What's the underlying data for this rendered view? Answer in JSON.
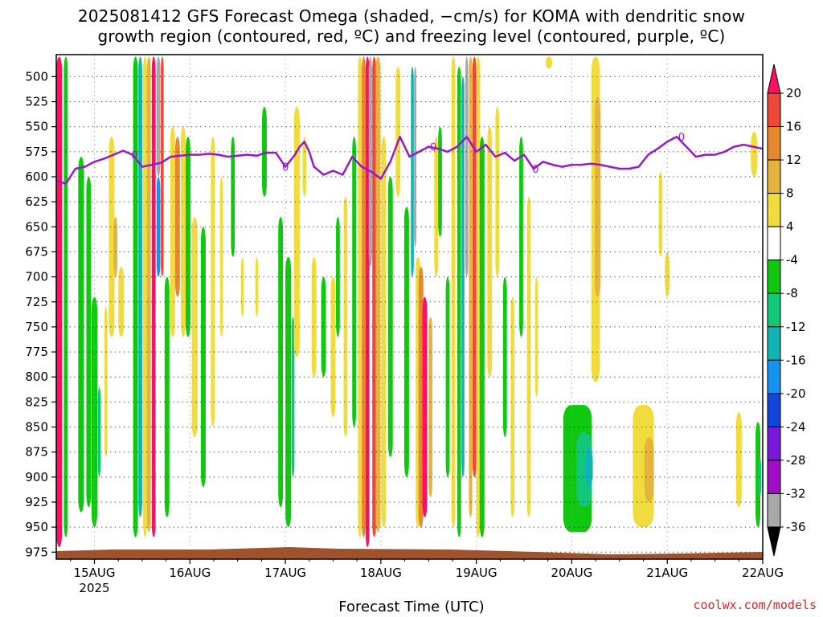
{
  "title_line1": "2025081412 GFS Forecast Omega (shaded, −cm/s) for KOMA with dendritic snow",
  "title_line2": "growth region (contoured, red, ºC) and freezing level (contoured, purple, ºC)",
  "watermark": "coolwx.com/models",
  "chart_data": {
    "type": "heatmap",
    "xlabel": "Forecast Time (UTC)",
    "ylabel": "",
    "x_tick_labels": [
      "15AUG",
      "16AUG",
      "17AUG",
      "18AUG",
      "19AUG",
      "20AUG",
      "21AUG",
      "22AUG"
    ],
    "x_tick_sublabel": "2025",
    "x_range": [
      14.6,
      22.0
    ],
    "y_range": [
      478,
      982
    ],
    "y_inverted": true,
    "y_tick_labels": [
      500,
      525,
      550,
      575,
      600,
      625,
      650,
      675,
      700,
      725,
      750,
      775,
      800,
      825,
      850,
      875,
      900,
      925,
      950,
      975
    ],
    "grid": true,
    "colorbar": {
      "labels": [
        20,
        16,
        12,
        8,
        4,
        -4,
        -8,
        -12,
        -16,
        -20,
        -24,
        -28,
        -32,
        -36
      ],
      "colors": [
        "#ff1060",
        "#f04838",
        "#e8882c",
        "#e4b43c",
        "#f0dc3c",
        "#ffffff",
        "#10c810",
        "#10c878",
        "#10b4b4",
        "#1494f0",
        "#1446dc",
        "#7818dc",
        "#a00cc8",
        "#a8a8a8",
        "#000000"
      ]
    },
    "freezing_level_color": "#9a18cc",
    "freezing_level_label": "0",
    "freezing_level": [
      [
        14.6,
        604
      ],
      [
        14.7,
        607
      ],
      [
        14.8,
        592
      ],
      [
        14.9,
        590
      ],
      [
        15.0,
        585
      ],
      [
        15.1,
        582
      ],
      [
        15.2,
        578
      ],
      [
        15.3,
        574
      ],
      [
        15.4,
        578
      ],
      [
        15.5,
        590
      ],
      [
        15.6,
        588
      ],
      [
        15.7,
        586
      ],
      [
        15.8,
        580
      ],
      [
        15.9,
        579
      ],
      [
        16.0,
        578
      ],
      [
        16.1,
        578
      ],
      [
        16.2,
        577
      ],
      [
        16.3,
        578
      ],
      [
        16.4,
        580
      ],
      [
        16.5,
        579
      ],
      [
        16.6,
        578
      ],
      [
        16.7,
        579
      ],
      [
        16.8,
        576
      ],
      [
        16.9,
        576
      ],
      [
        17.0,
        590
      ],
      [
        17.1,
        578
      ],
      [
        17.15,
        570
      ],
      [
        17.2,
        565
      ],
      [
        17.25,
        575
      ],
      [
        17.3,
        590
      ],
      [
        17.4,
        598
      ],
      [
        17.5,
        594
      ],
      [
        17.6,
        598
      ],
      [
        17.7,
        580
      ],
      [
        17.8,
        590
      ],
      [
        17.9,
        595
      ],
      [
        18.0,
        602
      ],
      [
        18.1,
        585
      ],
      [
        18.2,
        560
      ],
      [
        18.3,
        580
      ],
      [
        18.4,
        575
      ],
      [
        18.5,
        570
      ],
      [
        18.6,
        572
      ],
      [
        18.7,
        575
      ],
      [
        18.8,
        570
      ],
      [
        18.9,
        560
      ],
      [
        19.0,
        575
      ],
      [
        19.1,
        568
      ],
      [
        19.2,
        580
      ],
      [
        19.3,
        576
      ],
      [
        19.4,
        584
      ],
      [
        19.5,
        578
      ],
      [
        19.6,
        592
      ],
      [
        19.7,
        585
      ],
      [
        19.8,
        588
      ],
      [
        19.9,
        590
      ],
      [
        20.0,
        588
      ],
      [
        20.1,
        588
      ],
      [
        20.2,
        587
      ],
      [
        20.3,
        588
      ],
      [
        20.4,
        590
      ],
      [
        20.5,
        592
      ],
      [
        20.6,
        592
      ],
      [
        20.7,
        590
      ],
      [
        20.8,
        578
      ],
      [
        20.9,
        572
      ],
      [
        21.0,
        565
      ],
      [
        21.1,
        560
      ],
      [
        21.2,
        570
      ],
      [
        21.3,
        580
      ],
      [
        21.4,
        578
      ],
      [
        21.5,
        578
      ],
      [
        21.6,
        575
      ],
      [
        21.7,
        570
      ],
      [
        21.8,
        568
      ],
      [
        22.0,
        572
      ]
    ],
    "omega_cells": [
      {
        "x": 14.63,
        "w": 0.06,
        "p1": 480,
        "p2": 970,
        "v": 20
      },
      {
        "x": 14.7,
        "w": 0.04,
        "p1": 480,
        "p2": 960,
        "v": -8
      },
      {
        "x": 14.8,
        "w": 0.05,
        "p1": 520,
        "p2": 960,
        "v": -4
      },
      {
        "x": 14.86,
        "w": 0.06,
        "p1": 580,
        "p2": 935,
        "v": -8
      },
      {
        "x": 14.94,
        "w": 0.05,
        "p1": 600,
        "p2": 930,
        "v": -8
      },
      {
        "x": 15.0,
        "w": 0.06,
        "p1": 720,
        "p2": 950,
        "v": -8
      },
      {
        "x": 15.05,
        "w": 0.03,
        "p1": 810,
        "p2": 900,
        "v": -12
      },
      {
        "x": 15.12,
        "w": 0.03,
        "p1": 730,
        "p2": 880,
        "v": 4
      },
      {
        "x": 15.18,
        "w": 0.06,
        "p1": 560,
        "p2": 760,
        "v": 4
      },
      {
        "x": 15.22,
        "w": 0.04,
        "p1": 640,
        "p2": 700,
        "v": 8
      },
      {
        "x": 15.28,
        "w": 0.06,
        "p1": 690,
        "p2": 760,
        "v": 4
      },
      {
        "x": 15.43,
        "w": 0.05,
        "p1": 480,
        "p2": 960,
        "v": -8
      },
      {
        "x": 15.48,
        "w": 0.04,
        "p1": 480,
        "p2": 940,
        "v": -16
      },
      {
        "x": 15.53,
        "w": 0.04,
        "p1": 480,
        "p2": 960,
        "v": 4
      },
      {
        "x": 15.57,
        "w": 0.04,
        "p1": 480,
        "p2": 955,
        "v": 8
      },
      {
        "x": 15.62,
        "w": 0.04,
        "p1": 480,
        "p2": 960,
        "v": 20
      },
      {
        "x": 15.67,
        "w": 0.04,
        "p1": 480,
        "p2": 600,
        "v": -36
      },
      {
        "x": 15.67,
        "w": 0.04,
        "p1": 600,
        "p2": 700,
        "v": -20
      },
      {
        "x": 15.71,
        "w": 0.03,
        "p1": 480,
        "p2": 700,
        "v": 16
      },
      {
        "x": 15.76,
        "w": 0.05,
        "p1": 700,
        "p2": 940,
        "v": -8
      },
      {
        "x": 15.82,
        "w": 0.05,
        "p1": 550,
        "p2": 760,
        "v": 4
      },
      {
        "x": 15.87,
        "w": 0.05,
        "p1": 560,
        "p2": 720,
        "v": 12
      },
      {
        "x": 15.93,
        "w": 0.05,
        "p1": 550,
        "p2": 760,
        "v": 4
      },
      {
        "x": 15.98,
        "w": 0.05,
        "p1": 560,
        "p2": 760,
        "v": -8
      },
      {
        "x": 16.05,
        "w": 0.06,
        "p1": 640,
        "p2": 860,
        "v": 4
      },
      {
        "x": 16.14,
        "w": 0.05,
        "p1": 650,
        "p2": 910,
        "v": -8
      },
      {
        "x": 16.24,
        "w": 0.04,
        "p1": 560,
        "p2": 850,
        "v": 4
      },
      {
        "x": 16.33,
        "w": 0.03,
        "p1": 600,
        "p2": 760,
        "v": 4
      },
      {
        "x": 16.45,
        "w": 0.04,
        "p1": 560,
        "p2": 680,
        "v": -8
      },
      {
        "x": 16.55,
        "w": 0.03,
        "p1": 680,
        "p2": 740,
        "v": 4
      },
      {
        "x": 16.7,
        "w": 0.03,
        "p1": 680,
        "p2": 740,
        "v": 4
      },
      {
        "x": 16.78,
        "w": 0.05,
        "p1": 530,
        "p2": 620,
        "v": -8
      },
      {
        "x": 16.95,
        "w": 0.05,
        "p1": 640,
        "p2": 930,
        "v": -8
      },
      {
        "x": 17.03,
        "w": 0.06,
        "p1": 680,
        "p2": 950,
        "v": -8
      },
      {
        "x": 17.08,
        "w": 0.03,
        "p1": 740,
        "p2": 900,
        "v": -12
      },
      {
        "x": 17.12,
        "w": 0.06,
        "p1": 530,
        "p2": 780,
        "v": 4
      },
      {
        "x": 17.2,
        "w": 0.04,
        "p1": 560,
        "p2": 620,
        "v": 4
      },
      {
        "x": 17.3,
        "w": 0.05,
        "p1": 680,
        "p2": 800,
        "v": 4
      },
      {
        "x": 17.4,
        "w": 0.05,
        "p1": 700,
        "p2": 800,
        "v": -8
      },
      {
        "x": 17.5,
        "w": 0.05,
        "p1": 700,
        "p2": 840,
        "v": 4
      },
      {
        "x": 17.55,
        "w": 0.04,
        "p1": 640,
        "p2": 760,
        "v": -8
      },
      {
        "x": 17.63,
        "w": 0.04,
        "p1": 620,
        "p2": 860,
        "v": 4
      },
      {
        "x": 17.72,
        "w": 0.04,
        "p1": 560,
        "p2": 850,
        "v": -8
      },
      {
        "x": 17.78,
        "w": 0.04,
        "p1": 480,
        "p2": 960,
        "v": 4
      },
      {
        "x": 17.82,
        "w": 0.04,
        "p1": 480,
        "p2": 960,
        "v": 12
      },
      {
        "x": 17.86,
        "w": 0.04,
        "p1": 480,
        "p2": 970,
        "v": 20
      },
      {
        "x": 17.89,
        "w": 0.035,
        "p1": 480,
        "p2": 690,
        "v": -36
      },
      {
        "x": 17.93,
        "w": 0.04,
        "p1": 480,
        "p2": 960,
        "v": 16
      },
      {
        "x": 17.97,
        "w": 0.05,
        "p1": 480,
        "p2": 955,
        "v": 8
      },
      {
        "x": 18.03,
        "w": 0.05,
        "p1": 560,
        "p2": 950,
        "v": 4
      },
      {
        "x": 18.1,
        "w": 0.05,
        "p1": 600,
        "p2": 880,
        "v": -8
      },
      {
        "x": 18.18,
        "w": 0.05,
        "p1": 490,
        "p2": 620,
        "v": 4
      },
      {
        "x": 18.27,
        "w": 0.05,
        "p1": 630,
        "p2": 900,
        "v": -8
      },
      {
        "x": 18.33,
        "w": 0.03,
        "p1": 490,
        "p2": 700,
        "v": -16
      },
      {
        "x": 18.36,
        "w": 0.025,
        "p1": 490,
        "p2": 670,
        "v": -36
      },
      {
        "x": 18.39,
        "w": 0.05,
        "p1": 680,
        "p2": 950,
        "v": 4
      },
      {
        "x": 18.42,
        "w": 0.05,
        "p1": 690,
        "p2": 950,
        "v": 12
      },
      {
        "x": 18.46,
        "w": 0.05,
        "p1": 720,
        "p2": 940,
        "v": 20
      },
      {
        "x": 18.52,
        "w": 0.04,
        "p1": 740,
        "p2": 920,
        "v": 8
      },
      {
        "x": 18.58,
        "w": 0.04,
        "p1": 560,
        "p2": 700,
        "v": 4
      },
      {
        "x": 18.62,
        "w": 0.04,
        "p1": 550,
        "p2": 660,
        "v": -8
      },
      {
        "x": 18.7,
        "w": 0.04,
        "p1": 700,
        "p2": 900,
        "v": -8
      },
      {
        "x": 18.76,
        "w": 0.04,
        "p1": 480,
        "p2": 950,
        "v": 4
      },
      {
        "x": 18.82,
        "w": 0.04,
        "p1": 490,
        "p2": 960,
        "v": -8
      },
      {
        "x": 18.86,
        "w": 0.03,
        "p1": 500,
        "p2": 900,
        "v": -16
      },
      {
        "x": 18.9,
        "w": 0.03,
        "p1": 480,
        "p2": 700,
        "v": -36
      },
      {
        "x": 18.94,
        "w": 0.035,
        "p1": 480,
        "p2": 940,
        "v": 8
      },
      {
        "x": 18.98,
        "w": 0.04,
        "p1": 480,
        "p2": 900,
        "v": 16
      },
      {
        "x": 19.02,
        "w": 0.04,
        "p1": 480,
        "p2": 960,
        "v": 4
      },
      {
        "x": 19.06,
        "w": 0.05,
        "p1": 560,
        "p2": 960,
        "v": -8
      },
      {
        "x": 19.14,
        "w": 0.05,
        "p1": 550,
        "p2": 800,
        "v": 4
      },
      {
        "x": 19.22,
        "w": 0.04,
        "p1": 530,
        "p2": 700,
        "v": 4
      },
      {
        "x": 19.3,
        "w": 0.04,
        "p1": 700,
        "p2": 860,
        "v": -8
      },
      {
        "x": 19.38,
        "w": 0.04,
        "p1": 720,
        "p2": 940,
        "v": 4
      },
      {
        "x": 19.47,
        "w": 0.04,
        "p1": 560,
        "p2": 760,
        "v": -8
      },
      {
        "x": 19.55,
        "w": 0.04,
        "p1": 620,
        "p2": 940,
        "v": 4
      },
      {
        "x": 19.63,
        "w": 0.03,
        "p1": 700,
        "p2": 820,
        "v": 4
      },
      {
        "x": 19.76,
        "w": 0.07,
        "p1": 480,
        "p2": 492,
        "v": 4
      },
      {
        "x": 20.06,
        "w": 0.3,
        "p1": 828,
        "p2": 955,
        "v": -8
      },
      {
        "x": 20.13,
        "w": 0.16,
        "p1": 855,
        "p2": 930,
        "v": -12
      },
      {
        "x": 20.18,
        "w": 0.08,
        "p1": 870,
        "p2": 910,
        "v": -16
      },
      {
        "x": 20.25,
        "w": 0.09,
        "p1": 480,
        "p2": 805,
        "v": 4
      },
      {
        "x": 20.27,
        "w": 0.06,
        "p1": 520,
        "p2": 720,
        "v": 8
      },
      {
        "x": 20.75,
        "w": 0.22,
        "p1": 828,
        "p2": 950,
        "v": 4
      },
      {
        "x": 20.81,
        "w": 0.1,
        "p1": 860,
        "p2": 925,
        "v": 8
      },
      {
        "x": 20.93,
        "w": 0.04,
        "p1": 595,
        "p2": 680,
        "v": 4
      },
      {
        "x": 21.0,
        "w": 0.05,
        "p1": 675,
        "p2": 720,
        "v": 4
      },
      {
        "x": 21.75,
        "w": 0.06,
        "p1": 835,
        "p2": 930,
        "v": 4
      },
      {
        "x": 21.91,
        "w": 0.07,
        "p1": 555,
        "p2": 600,
        "v": 4
      },
      {
        "x": 21.95,
        "w": 0.05,
        "p1": 845,
        "p2": 950,
        "v": -8
      },
      {
        "x": 21.97,
        "w": 0.03,
        "p1": 880,
        "p2": 920,
        "v": -12
      }
    ]
  }
}
